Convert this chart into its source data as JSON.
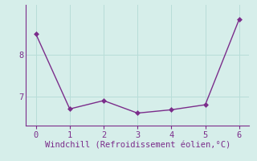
{
  "x": [
    0,
    1,
    2,
    3,
    4,
    5,
    6
  ],
  "y": [
    8.5,
    6.7,
    6.9,
    6.6,
    6.68,
    6.8,
    8.85
  ],
  "line_color": "#7b2d8b",
  "marker": "D",
  "marker_size": 3,
  "xlabel": "Windchill (Refroidissement éolien,°C)",
  "xlabel_color": "#7b2d8b",
  "background_color": "#d6eeea",
  "grid_color": "#b8ddd8",
  "spine_color": "#7b2d8b",
  "tick_color": "#7b2d8b",
  "ylim": [
    6.3,
    9.2
  ],
  "xlim": [
    -0.3,
    6.3
  ],
  "yticks": [
    7,
    8
  ],
  "xticks": [
    0,
    1,
    2,
    3,
    4,
    5,
    6
  ],
  "font_size": 7.5
}
